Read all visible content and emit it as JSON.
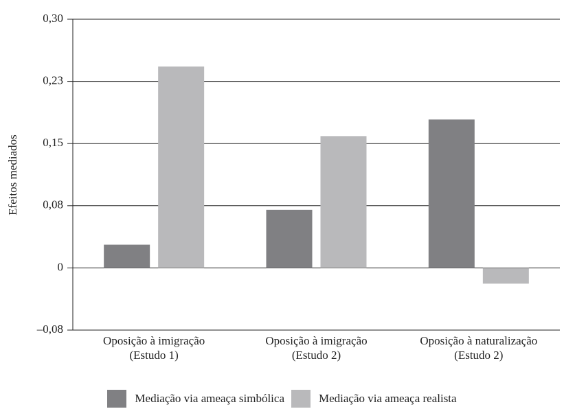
{
  "chart_data": {
    "type": "bar",
    "y_label": "Efeitos mediados",
    "categories": [
      "Oposição à imigração\n(Estudo 1)",
      "Oposição à imigração\n(Estudo 2)",
      "Oposição à naturalização\n(Estudo 2)"
    ],
    "series": [
      {
        "name": "Mediação via ameaça simbólica",
        "color": "#808083",
        "values": [
          0.028,
          0.07,
          0.179
        ]
      },
      {
        "name": "Mediação via ameaça realista",
        "color": "#b9b9bb",
        "values": [
          0.243,
          0.159,
          -0.019
        ]
      }
    ],
    "ylim": [
      -0.075,
      0.3
    ],
    "yticks": [
      {
        "value": -0.075,
        "label": "–0,08"
      },
      0,
      {
        "value": 0.075,
        "label": "0,08"
      },
      {
        "value": 0.15,
        "label": "0,15"
      },
      {
        "value": 0.225,
        "label": "0,23"
      },
      {
        "value": 0.3,
        "label": "0,30"
      }
    ],
    "grid": true
  }
}
